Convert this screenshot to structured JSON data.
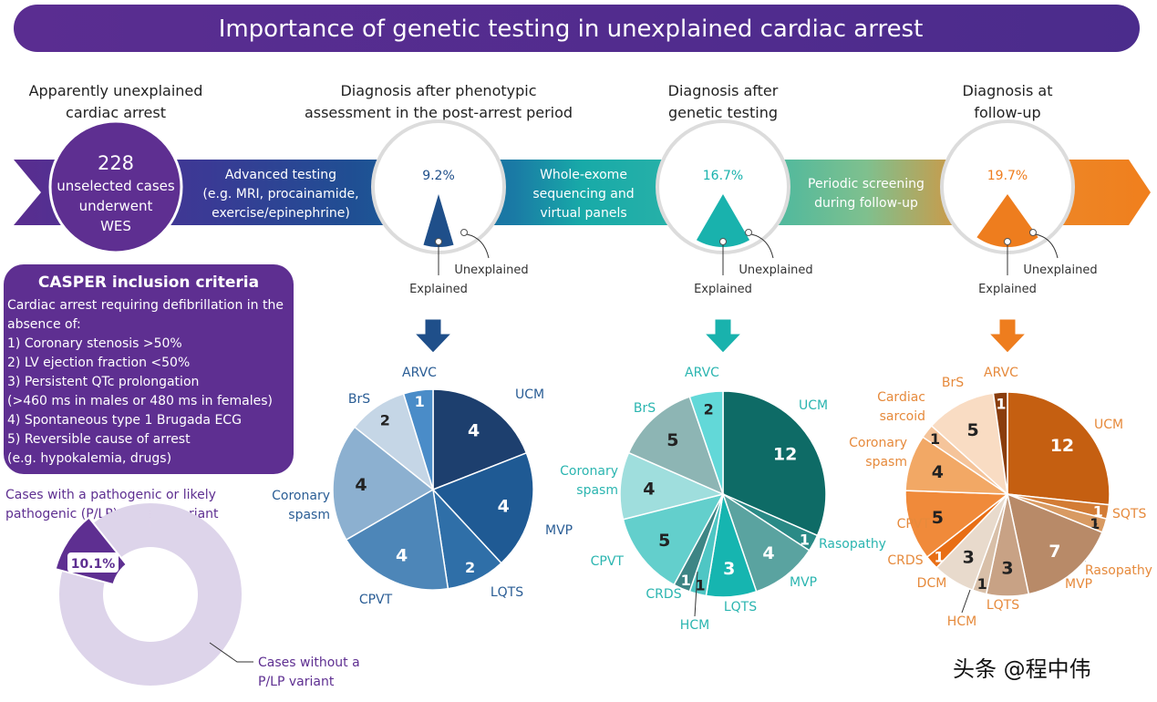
{
  "title": "Importance of genetic testing in unexplained cardiac arrest",
  "stages": [
    {
      "heading": [
        "Apparently unexplained",
        "cardiac arrest"
      ]
    },
    {
      "heading": [
        "Diagnosis after phenotypic",
        "assessment in the post-arrest period"
      ]
    },
    {
      "heading": [
        "Diagnosis after",
        "genetic testing"
      ]
    },
    {
      "heading": [
        "Diagnosis at",
        "follow-up"
      ]
    }
  ],
  "start_circle": {
    "count": "228",
    "lines": [
      "unselected cases",
      "underwent",
      "WES"
    ]
  },
  "arrow_steps": [
    [
      "Advanced testing",
      "(e.g. MRI, procainamide,",
      "exercise/epinephrine)"
    ],
    [
      "Whole-exome",
      "sequencing and",
      "virtual panels"
    ],
    [
      "Periodic screening",
      "during follow-up"
    ]
  ],
  "diagnosis_rates": [
    {
      "percent": "9.2%",
      "value": 9.2,
      "color": "#1f4f8a"
    },
    {
      "percent": "16.7%",
      "value": 16.7,
      "color": "#19b2ad"
    },
    {
      "percent": "19.7%",
      "value": 19.7,
      "color": "#ee7d1e"
    }
  ],
  "rate_labels": {
    "explained": "Explained",
    "unexplained": "Unexplained"
  },
  "casper": {
    "title": "CASPER inclusion criteria",
    "lines": [
      "Cardiac arrest requiring defibrillation in the",
      "absence of:",
      "1) Coronary stenosis >50%",
      "2) LV ejection fraction <50%",
      "3) Persistent QTc prolongation",
      "   (>460 ms in males or 480 ms in females)",
      "4) Spontaneous type 1 Brugada ECG",
      "5) Reversible cause of arrest",
      "   (e.g. hypokalemia, drugs)"
    ]
  },
  "pplp": {
    "label": [
      "Cases with a pathogenic or likely",
      "pathogenic (P/LP) genetic variant"
    ],
    "percent": "10.1%",
    "value": 10.1,
    "other_label": [
      "Cases without a",
      "P/LP variant"
    ],
    "colors": {
      "variant": "#5e2f91",
      "no_variant": "#ddd4ea"
    }
  },
  "chart_data": [
    {
      "type": "pie",
      "categories": [
        "UCM",
        "MVP",
        "LQTS",
        "CPVT",
        "Coronary spasm",
        "BrS",
        "ARVC"
      ],
      "values": [
        4,
        4,
        2,
        4,
        4,
        2,
        1
      ],
      "colors": [
        "#1d3f6e",
        "#1f5a94",
        "#2f6fa8",
        "#4d86b8",
        "#8cb0d0",
        "#c5d6e6",
        "#4a8cc8"
      ],
      "label_color": "#2a5d95"
    },
    {
      "type": "pie",
      "categories": [
        "UCM",
        "Rasopathy",
        "MVP",
        "LQTS",
        "HCM",
        "CRDS",
        "CPVT",
        "Coronary spasm",
        "BrS",
        "ARVC"
      ],
      "values": [
        12,
        1,
        4,
        3,
        1,
        1,
        5,
        4,
        5,
        2
      ],
      "colors": [
        "#0e6b66",
        "#2a8a86",
        "#5aa3a0",
        "#16b5b0",
        "#4fc6c4",
        "#3d8585",
        "#63cfcc",
        "#9fdedd",
        "#8db5b4",
        "#62d8d8"
      ],
      "label_color": "#2bb5b0"
    },
    {
      "type": "pie",
      "categories": [
        "UCM",
        "SQTS",
        "Rasopathy",
        "MVP",
        "LQTS",
        "HCM",
        "DCM",
        "CRDS",
        "CPVT",
        "Coronary spasm",
        "Cardiac sarcoid",
        "BrS",
        "ARVC"
      ],
      "values": [
        12,
        1,
        1,
        7,
        3,
        1,
        3,
        1,
        5,
        4,
        1,
        5,
        1
      ],
      "colors": [
        "#c55f11",
        "#d37c35",
        "#d89a62",
        "#b88a68",
        "#c8a285",
        "#d8bfa8",
        "#e8dacc",
        "#e86e15",
        "#f08a3a",
        "#f2a865",
        "#f5c49a",
        "#f9dcc3",
        "#8a3d0d"
      ],
      "label_color": "#e68a3c"
    }
  ],
  "watermark": "头条 @程中伟"
}
